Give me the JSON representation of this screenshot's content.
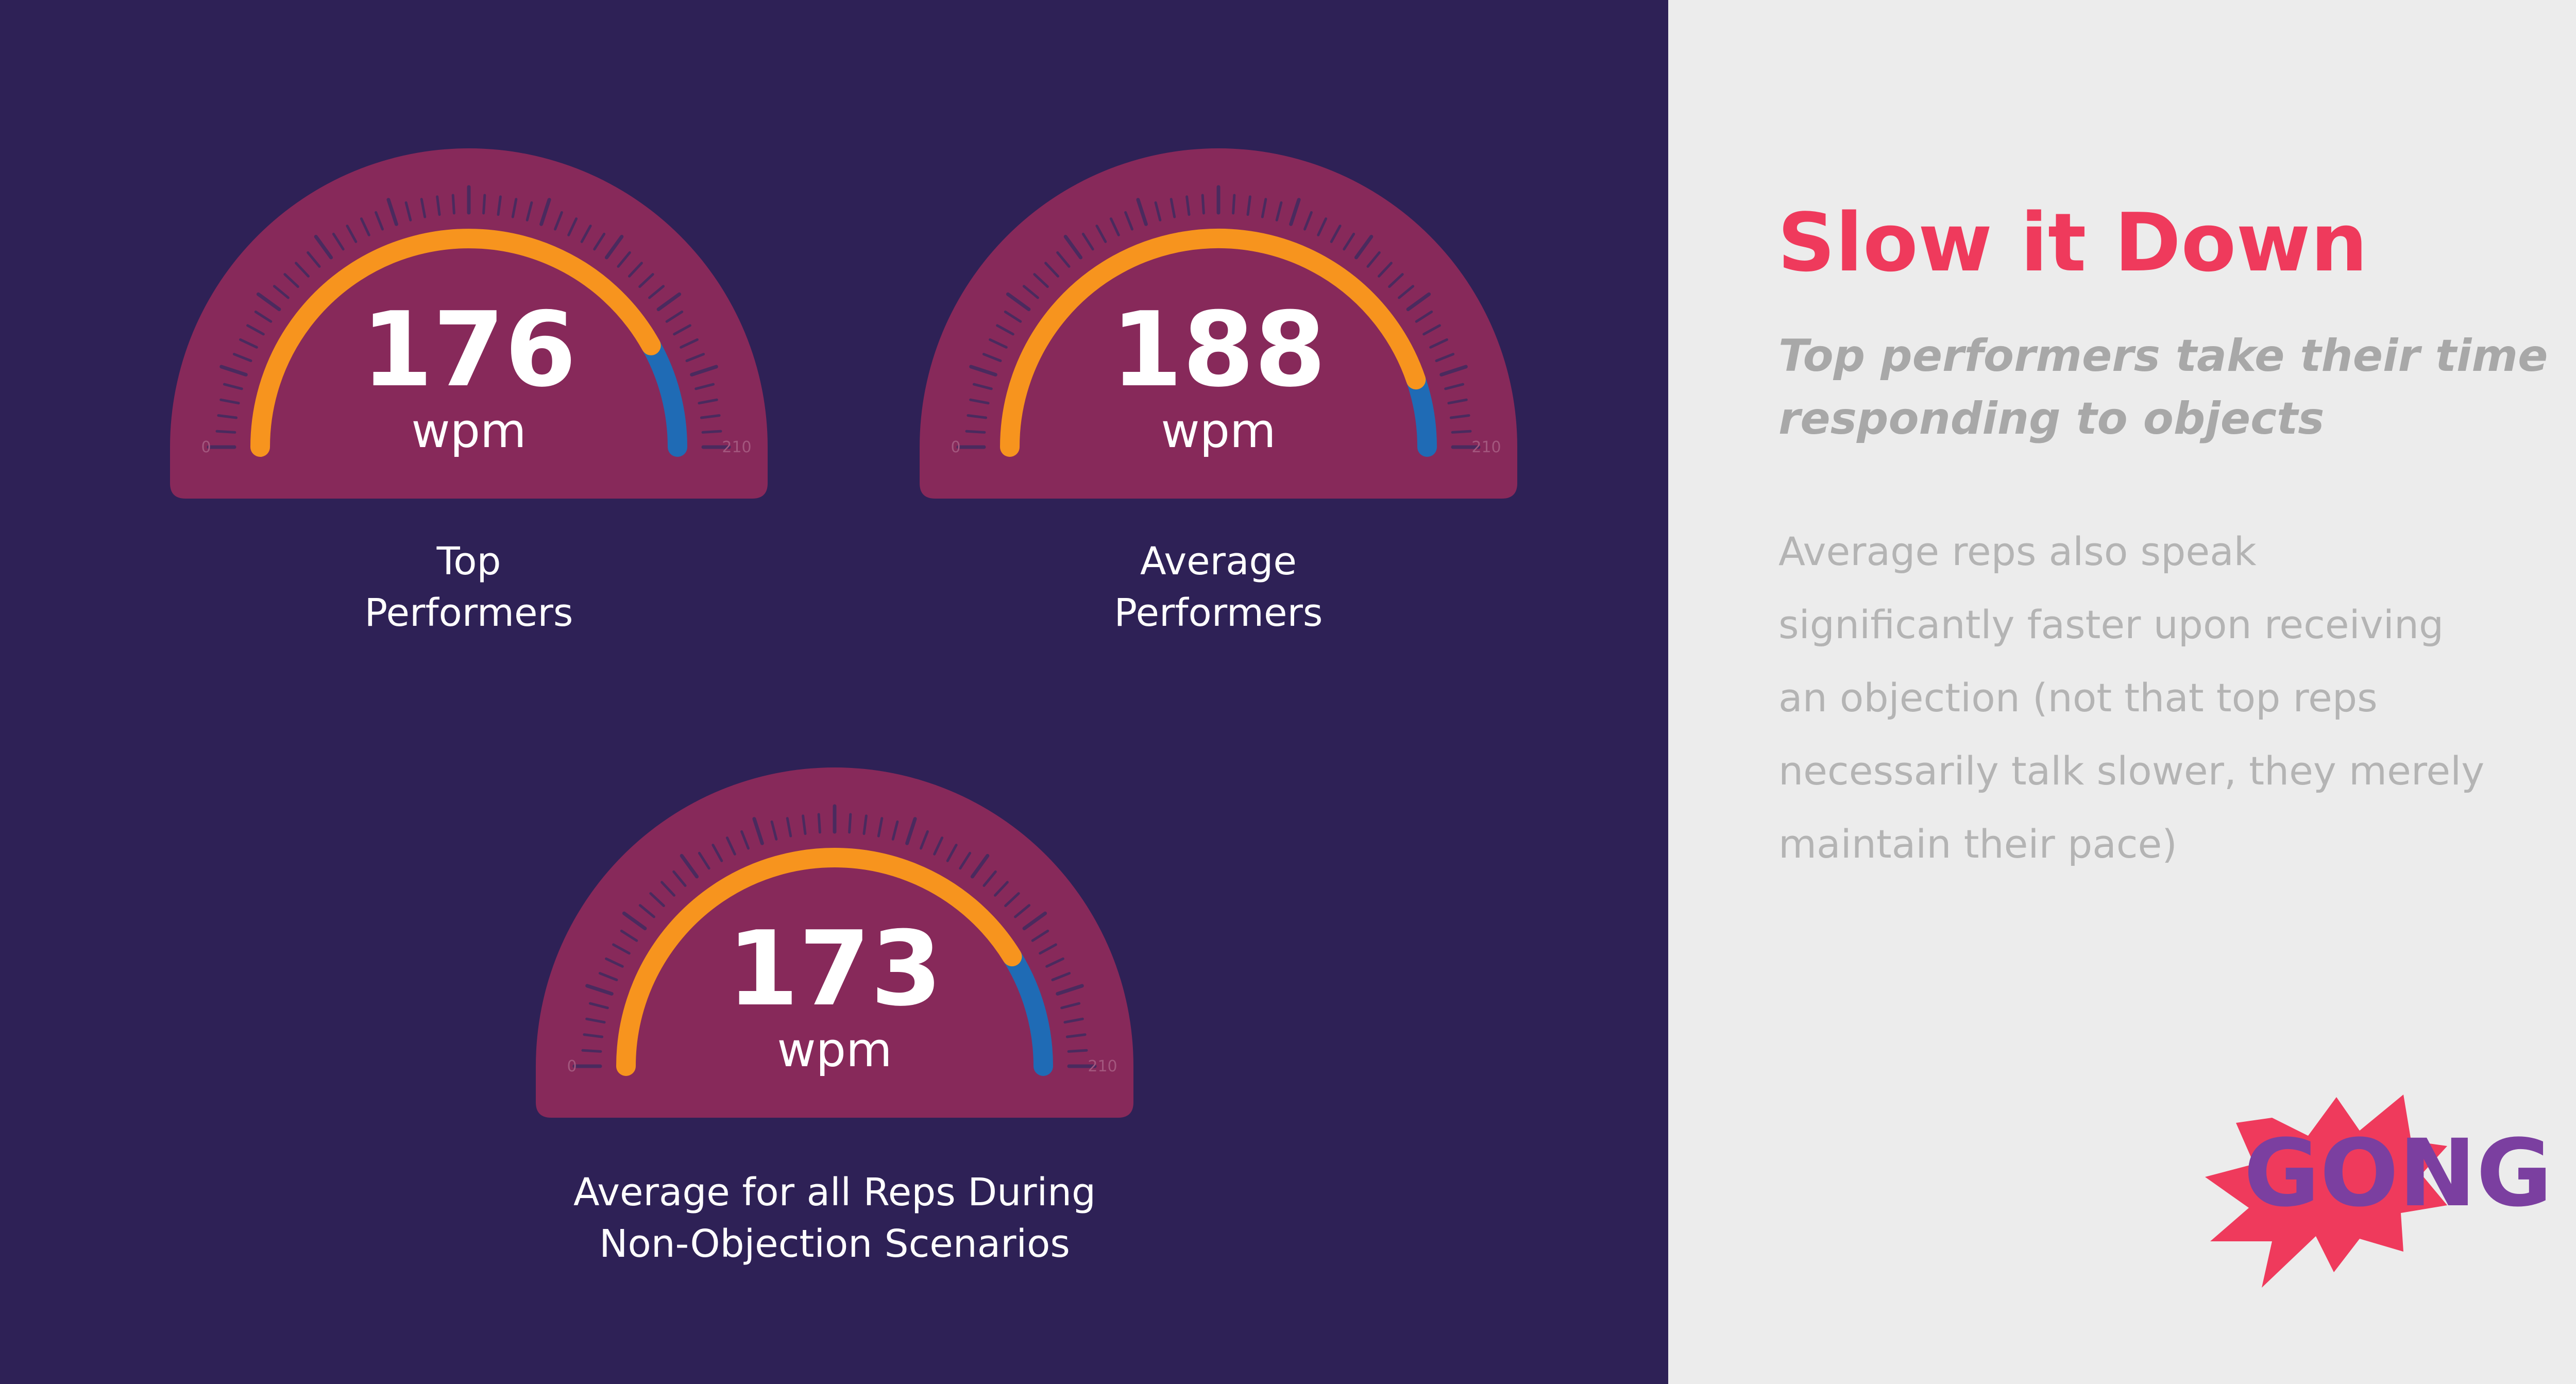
{
  "headline": "Slow it Down",
  "subheadline_lines": [
    "Top performers take their time",
    "responding to objects"
  ],
  "body_lines": [
    "Average reps also speak",
    "significantly faster upon receiving",
    "an objection (not that top reps",
    "necessarily talk slower, they merely",
    "maintain their pace)"
  ],
  "logo": {
    "part1": "GO",
    "part2": "NG",
    "color_part1": "#7b3fa0",
    "color_part2": "#7b3fa0",
    "burst_color": "#ef3a5c"
  },
  "colors": {
    "background_left": "#2e2156",
    "gauge_face": "#87295a",
    "arc_orange": "#f7941e",
    "arc_blue": "#1f6bb5",
    "headline": "#ef3a5c"
  },
  "chart_data": [
    {
      "type": "gauge",
      "value": 176,
      "value_label": "176",
      "unit": "wpm",
      "min": 0,
      "max": 210,
      "min_label": "0",
      "max_label": "210",
      "caption_lines": [
        "Top",
        "Performers"
      ]
    },
    {
      "type": "gauge",
      "value": 188,
      "value_label": "188",
      "unit": "wpm",
      "min": 0,
      "max": 210,
      "min_label": "0",
      "max_label": "210",
      "caption_lines": [
        "Average",
        "Performers"
      ]
    },
    {
      "type": "gauge",
      "value": 173,
      "value_label": "173",
      "unit": "wpm",
      "min": 0,
      "max": 210,
      "min_label": "0",
      "max_label": "210",
      "caption_lines": [
        "Average for all Reps During",
        "Non-Objection Scenarios"
      ]
    }
  ]
}
